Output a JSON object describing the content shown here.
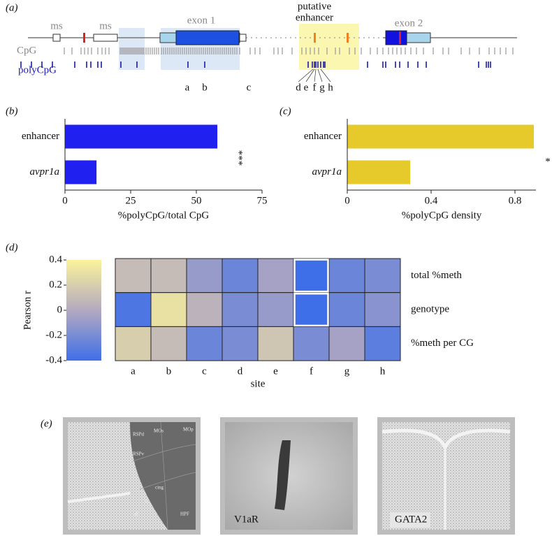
{
  "panel_labels": [
    "(a)",
    "(b)",
    "(c)",
    "(d)",
    "(e)"
  ],
  "gene_diagram": {
    "region_labels": [
      "ms",
      "ms",
      "exon 1",
      "exon 2"
    ],
    "enhancer_label": [
      "putative",
      "enhancer"
    ],
    "track_labels": [
      "CpG",
      "polyCpG"
    ],
    "site_labels": [
      "a",
      "b",
      "c",
      "d",
      "e",
      "f",
      "g",
      "h"
    ]
  },
  "chart_data": [
    {
      "type": "hbar",
      "categories": [
        "enhancer",
        "avpr1a"
      ],
      "values": [
        58,
        12
      ],
      "color": "#2020f0",
      "xlim": [
        0,
        75
      ],
      "xticks": [
        0,
        25,
        50,
        75
      ],
      "xlabel": "%polyCpG/total CpG",
      "annotation": "***"
    },
    {
      "type": "hbar",
      "categories": [
        "enhancer",
        "avpr1a"
      ],
      "values": [
        0.89,
        0.3
      ],
      "color": "#e6c92a",
      "xlim": [
        0,
        0.9
      ],
      "xticks": [
        0,
        0.4,
        0.8
      ],
      "xlabel": "%polyCpG density",
      "annotation": "*"
    },
    {
      "type": "heatmap",
      "rows": [
        "total %meth",
        "genotype",
        "%meth per CG"
      ],
      "columns": [
        "a",
        "b",
        "c",
        "d",
        "e",
        "f",
        "g",
        "h"
      ],
      "values": [
        [
          0.1,
          0.1,
          -0.1,
          -0.25,
          -0.05,
          -0.4,
          -0.25,
          -0.2
        ],
        [
          -0.35,
          0.3,
          0.05,
          -0.2,
          -0.1,
          -0.4,
          -0.25,
          -0.15
        ],
        [
          0.2,
          0.1,
          -0.25,
          -0.2,
          0.15,
          -0.2,
          -0.05,
          -0.3
        ]
      ],
      "highlighted_cells": [
        [
          0,
          5
        ],
        [
          1,
          5
        ]
      ],
      "zlim": [
        -0.4,
        0.4
      ],
      "zticks": [
        0.4,
        0.2,
        0,
        -0.2,
        -0.4
      ],
      "colors": [
        "#3f6fe8",
        "#b3a9c0",
        "#fbf39a"
      ],
      "colorbar_label": "Pearson r",
      "xlabel": "site"
    }
  ],
  "images": {
    "atlas_labels": [
      "RSPd",
      "MOs",
      "MOp",
      "RSPv",
      "cing",
      "cc",
      "df",
      "HPF"
    ],
    "stain_labels": [
      "V1aR",
      "GATA2"
    ]
  }
}
